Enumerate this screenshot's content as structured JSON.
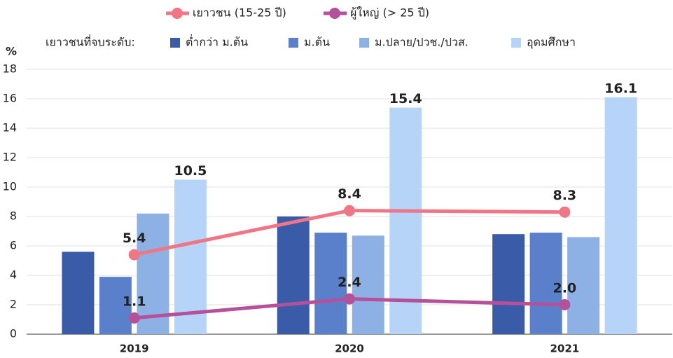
{
  "chart_data": {
    "type": "bar_line",
    "y_label": "%",
    "legend_prefix": "เยาวชนที่จบระดับ:",
    "categories": [
      "2019",
      "2020",
      "2021"
    ],
    "ylim": [
      0,
      18
    ],
    "yticks": [
      0,
      2,
      4,
      6,
      8,
      10,
      12,
      14,
      16,
      18
    ],
    "grid": true,
    "bar_series": [
      {
        "name": "ต่ำกว่า ม.ต้น",
        "color": "#3a5ba8",
        "values": [
          5.6,
          8.0,
          6.8
        ],
        "show_labels": false
      },
      {
        "name": "ม.ต้น",
        "color": "#5a80cc",
        "values": [
          3.9,
          6.9,
          6.9
        ],
        "show_labels": false
      },
      {
        "name": "ม.ปลาย/ปวช./ปวส.",
        "color": "#8db0e5",
        "values": [
          8.2,
          6.7,
          6.6
        ],
        "show_labels": false
      },
      {
        "name": "อุดมศึกษา",
        "color": "#b5d4f7",
        "values": [
          10.5,
          15.4,
          16.1
        ],
        "show_labels": true
      }
    ],
    "line_series": [
      {
        "name": "เยาวชน (15-25 ปี)",
        "color": "#f07585",
        "values": [
          5.4,
          8.4,
          8.3
        ],
        "show_labels": true
      },
      {
        "name": "ผู้ใหญ่ (> 25 ปี)",
        "color": "#b5509a",
        "values": [
          1.1,
          2.4,
          2.0
        ],
        "value_labels": [
          "1.1",
          "2.4",
          "2.0"
        ],
        "show_labels": true
      }
    ]
  }
}
